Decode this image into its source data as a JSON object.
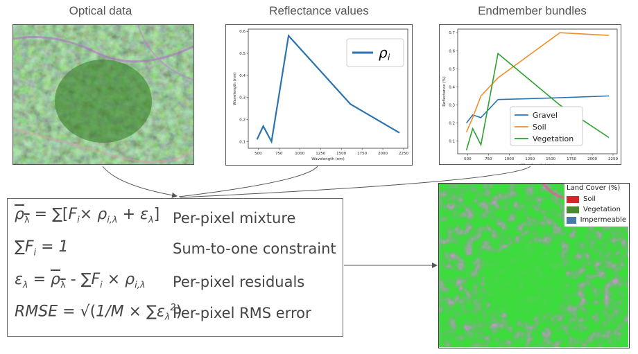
{
  "titles": {
    "optical": "Optical data",
    "reflectance": "Reflectance values",
    "endmember": "Endmember bundles"
  },
  "colors": {
    "line_blue": "#2b73b0",
    "orange": "#f28c28",
    "green": "#2ca02c",
    "soil_red": "#d62728",
    "veg_green": "#4a8c2a",
    "imp_blue": "#4a78a8",
    "map_green": "#3ddc3d",
    "map_purple": "#a05ad0"
  },
  "chart_data": [
    {
      "type": "line",
      "title": "",
      "xlabel": "Wavelength (nm)",
      "ylabel": "Wavelength (nm)",
      "xlim": [
        380,
        2300
      ],
      "ylim": [
        0.07,
        0.61
      ],
      "xticks": [
        500,
        750,
        1000,
        1250,
        1500,
        1750,
        2000,
        2250
      ],
      "yticks": [
        0.1,
        0.2,
        0.3,
        0.4,
        0.5,
        0.6
      ],
      "legend_position": "top-right",
      "series": [
        {
          "name": "ρ_i",
          "x": [
            485,
            560,
            660,
            865,
            1610,
            2200
          ],
          "y": [
            0.11,
            0.17,
            0.1,
            0.58,
            0.27,
            0.14
          ]
        }
      ]
    },
    {
      "type": "line",
      "title": "",
      "xlabel": "Wavelength (nm)",
      "ylabel": "Reflectance (%)",
      "xlim": [
        380,
        2300
      ],
      "ylim": [
        0.03,
        0.72
      ],
      "xticks": [
        500,
        750,
        1000,
        1250,
        1500,
        1750,
        2000,
        2250
      ],
      "yticks": [
        0.1,
        0.2,
        0.3,
        0.4,
        0.5,
        0.6,
        0.7
      ],
      "legend_position": "lower-center",
      "series": [
        {
          "name": "Gravel",
          "x": [
            485,
            560,
            660,
            865,
            1610,
            2200
          ],
          "y": [
            0.2,
            0.245,
            0.23,
            0.33,
            0.34,
            0.35
          ]
        },
        {
          "name": "Soil",
          "x": [
            485,
            560,
            660,
            865,
            1610,
            2200
          ],
          "y": [
            0.15,
            0.23,
            0.35,
            0.45,
            0.7,
            0.685
          ]
        },
        {
          "name": "Vegetation",
          "x": [
            485,
            560,
            660,
            865,
            1610,
            2200
          ],
          "y": [
            0.05,
            0.17,
            0.08,
            0.585,
            0.3,
            0.12
          ]
        }
      ]
    }
  ],
  "legend1_label": "ρ",
  "legend1_sub": "i",
  "equations": {
    "mix_desc": "Per-pixel mixture",
    "sum_desc": "Sum-to-one constraint",
    "res_desc": "Per-pixel residuals",
    "rmse_desc": "Per-pixel RMS error"
  },
  "map_legend": {
    "title": "Land Cover (%)",
    "items": [
      "Soil",
      "Vegetation",
      "Impermeable"
    ]
  }
}
